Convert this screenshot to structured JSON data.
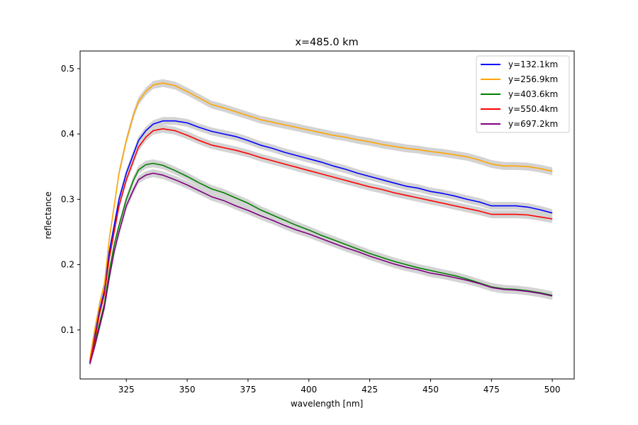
{
  "chart_data": {
    "type": "line",
    "title": "x=485.0 km",
    "xlabel": "wavelength [nm]",
    "ylabel": "reflectance",
    "xlim": [
      306,
      509
    ],
    "ylim": [
      0.025,
      0.527
    ],
    "x_ticks": [
      325,
      350,
      375,
      400,
      425,
      450,
      475,
      500
    ],
    "y_ticks": [
      0.1,
      0.2,
      0.3,
      0.4,
      0.5
    ],
    "grid": false,
    "legend_position": "top-right",
    "uncertainty_band_color": "#d3d3d3",
    "series": [
      {
        "name": "y=132.1km",
        "color": "#0000ff",
        "points": [
          [
            310,
            0.05
          ],
          [
            312,
            0.09
          ],
          [
            314,
            0.13
          ],
          [
            316,
            0.16
          ],
          [
            318,
            0.22
          ],
          [
            320,
            0.26
          ],
          [
            322,
            0.3
          ],
          [
            325,
            0.34
          ],
          [
            328,
            0.37
          ],
          [
            330,
            0.39
          ],
          [
            333,
            0.405
          ],
          [
            336,
            0.415
          ],
          [
            340,
            0.42
          ],
          [
            345,
            0.42
          ],
          [
            350,
            0.417
          ],
          [
            355,
            0.41
          ],
          [
            360,
            0.404
          ],
          [
            365,
            0.4
          ],
          [
            370,
            0.396
          ],
          [
            375,
            0.39
          ],
          [
            380,
            0.383
          ],
          [
            385,
            0.378
          ],
          [
            390,
            0.372
          ],
          [
            395,
            0.367
          ],
          [
            400,
            0.362
          ],
          [
            405,
            0.357
          ],
          [
            410,
            0.351
          ],
          [
            415,
            0.346
          ],
          [
            420,
            0.34
          ],
          [
            425,
            0.335
          ],
          [
            430,
            0.33
          ],
          [
            435,
            0.325
          ],
          [
            440,
            0.32
          ],
          [
            445,
            0.317
          ],
          [
            450,
            0.312
          ],
          [
            455,
            0.309
          ],
          [
            460,
            0.305
          ],
          [
            465,
            0.3
          ],
          [
            470,
            0.296
          ],
          [
            475,
            0.29
          ],
          [
            480,
            0.29
          ],
          [
            485,
            0.29
          ],
          [
            490,
            0.288
          ],
          [
            495,
            0.284
          ],
          [
            500,
            0.279
          ]
        ]
      },
      {
        "name": "y=256.9km",
        "color": "#ffa500",
        "points": [
          [
            310,
            0.055
          ],
          [
            312,
            0.1
          ],
          [
            314,
            0.14
          ],
          [
            316,
            0.17
          ],
          [
            318,
            0.24
          ],
          [
            320,
            0.29
          ],
          [
            322,
            0.34
          ],
          [
            325,
            0.39
          ],
          [
            328,
            0.43
          ],
          [
            330,
            0.45
          ],
          [
            333,
            0.465
          ],
          [
            336,
            0.475
          ],
          [
            340,
            0.478
          ],
          [
            345,
            0.474
          ],
          [
            350,
            0.465
          ],
          [
            355,
            0.455
          ],
          [
            360,
            0.445
          ],
          [
            365,
            0.44
          ],
          [
            370,
            0.434
          ],
          [
            375,
            0.428
          ],
          [
            380,
            0.422
          ],
          [
            385,
            0.418
          ],
          [
            390,
            0.414
          ],
          [
            395,
            0.41
          ],
          [
            400,
            0.406
          ],
          [
            405,
            0.402
          ],
          [
            410,
            0.398
          ],
          [
            415,
            0.395
          ],
          [
            420,
            0.391
          ],
          [
            425,
            0.388
          ],
          [
            430,
            0.384
          ],
          [
            435,
            0.381
          ],
          [
            440,
            0.378
          ],
          [
            445,
            0.376
          ],
          [
            450,
            0.373
          ],
          [
            455,
            0.371
          ],
          [
            460,
            0.368
          ],
          [
            465,
            0.365
          ],
          [
            470,
            0.36
          ],
          [
            475,
            0.354
          ],
          [
            480,
            0.351
          ],
          [
            485,
            0.351
          ],
          [
            490,
            0.35
          ],
          [
            495,
            0.347
          ],
          [
            500,
            0.343
          ]
        ]
      },
      {
        "name": "y=403.6km",
        "color": "#008000",
        "points": [
          [
            310,
            0.05
          ],
          [
            312,
            0.08
          ],
          [
            314,
            0.11
          ],
          [
            316,
            0.14
          ],
          [
            318,
            0.19
          ],
          [
            320,
            0.23
          ],
          [
            322,
            0.26
          ],
          [
            325,
            0.3
          ],
          [
            328,
            0.33
          ],
          [
            330,
            0.345
          ],
          [
            333,
            0.353
          ],
          [
            336,
            0.355
          ],
          [
            340,
            0.352
          ],
          [
            345,
            0.344
          ],
          [
            350,
            0.335
          ],
          [
            355,
            0.325
          ],
          [
            360,
            0.316
          ],
          [
            365,
            0.31
          ],
          [
            370,
            0.302
          ],
          [
            375,
            0.294
          ],
          [
            380,
            0.284
          ],
          [
            385,
            0.276
          ],
          [
            390,
            0.268
          ],
          [
            395,
            0.26
          ],
          [
            400,
            0.253
          ],
          [
            405,
            0.245
          ],
          [
            410,
            0.238
          ],
          [
            415,
            0.231
          ],
          [
            420,
            0.224
          ],
          [
            425,
            0.217
          ],
          [
            430,
            0.211
          ],
          [
            435,
            0.205
          ],
          [
            440,
            0.2
          ],
          [
            445,
            0.195
          ],
          [
            450,
            0.191
          ],
          [
            455,
            0.187
          ],
          [
            460,
            0.183
          ],
          [
            465,
            0.178
          ],
          [
            470,
            0.172
          ],
          [
            475,
            0.166
          ],
          [
            480,
            0.163
          ],
          [
            485,
            0.162
          ],
          [
            490,
            0.16
          ],
          [
            495,
            0.157
          ],
          [
            500,
            0.153
          ]
        ]
      },
      {
        "name": "y=550.4km",
        "color": "#ff0000",
        "points": [
          [
            310,
            0.05
          ],
          [
            312,
            0.085
          ],
          [
            314,
            0.125
          ],
          [
            316,
            0.155
          ],
          [
            318,
            0.21
          ],
          [
            320,
            0.25
          ],
          [
            322,
            0.29
          ],
          [
            325,
            0.33
          ],
          [
            328,
            0.36
          ],
          [
            330,
            0.38
          ],
          [
            333,
            0.395
          ],
          [
            336,
            0.405
          ],
          [
            340,
            0.408
          ],
          [
            345,
            0.405
          ],
          [
            350,
            0.398
          ],
          [
            355,
            0.39
          ],
          [
            360,
            0.383
          ],
          [
            365,
            0.379
          ],
          [
            370,
            0.375
          ],
          [
            375,
            0.37
          ],
          [
            380,
            0.364
          ],
          [
            385,
            0.359
          ],
          [
            390,
            0.354
          ],
          [
            395,
            0.349
          ],
          [
            400,
            0.344
          ],
          [
            405,
            0.339
          ],
          [
            410,
            0.334
          ],
          [
            415,
            0.329
          ],
          [
            420,
            0.324
          ],
          [
            425,
            0.319
          ],
          [
            430,
            0.315
          ],
          [
            435,
            0.31
          ],
          [
            440,
            0.306
          ],
          [
            445,
            0.302
          ],
          [
            450,
            0.298
          ],
          [
            455,
            0.294
          ],
          [
            460,
            0.29
          ],
          [
            465,
            0.286
          ],
          [
            470,
            0.282
          ],
          [
            475,
            0.277
          ],
          [
            480,
            0.277
          ],
          [
            485,
            0.277
          ],
          [
            490,
            0.276
          ],
          [
            495,
            0.273
          ],
          [
            500,
            0.27
          ]
        ]
      },
      {
        "name": "y=697.2km",
        "color": "#800080",
        "points": [
          [
            310,
            0.048
          ],
          [
            312,
            0.075
          ],
          [
            314,
            0.105
          ],
          [
            316,
            0.135
          ],
          [
            318,
            0.18
          ],
          [
            320,
            0.22
          ],
          [
            322,
            0.25
          ],
          [
            325,
            0.29
          ],
          [
            328,
            0.315
          ],
          [
            330,
            0.33
          ],
          [
            333,
            0.337
          ],
          [
            336,
            0.34
          ],
          [
            340,
            0.337
          ],
          [
            345,
            0.33
          ],
          [
            350,
            0.322
          ],
          [
            355,
            0.313
          ],
          [
            360,
            0.304
          ],
          [
            365,
            0.298
          ],
          [
            370,
            0.29
          ],
          [
            375,
            0.283
          ],
          [
            380,
            0.275
          ],
          [
            385,
            0.268
          ],
          [
            390,
            0.26
          ],
          [
            395,
            0.253
          ],
          [
            400,
            0.247
          ],
          [
            405,
            0.24
          ],
          [
            410,
            0.233
          ],
          [
            415,
            0.226
          ],
          [
            420,
            0.22
          ],
          [
            425,
            0.213
          ],
          [
            430,
            0.207
          ],
          [
            435,
            0.201
          ],
          [
            440,
            0.196
          ],
          [
            445,
            0.192
          ],
          [
            450,
            0.187
          ],
          [
            455,
            0.184
          ],
          [
            460,
            0.18
          ],
          [
            465,
            0.176
          ],
          [
            470,
            0.171
          ],
          [
            475,
            0.165
          ],
          [
            480,
            0.162
          ],
          [
            485,
            0.161
          ],
          [
            490,
            0.159
          ],
          [
            495,
            0.156
          ],
          [
            500,
            0.152
          ]
        ]
      }
    ]
  }
}
